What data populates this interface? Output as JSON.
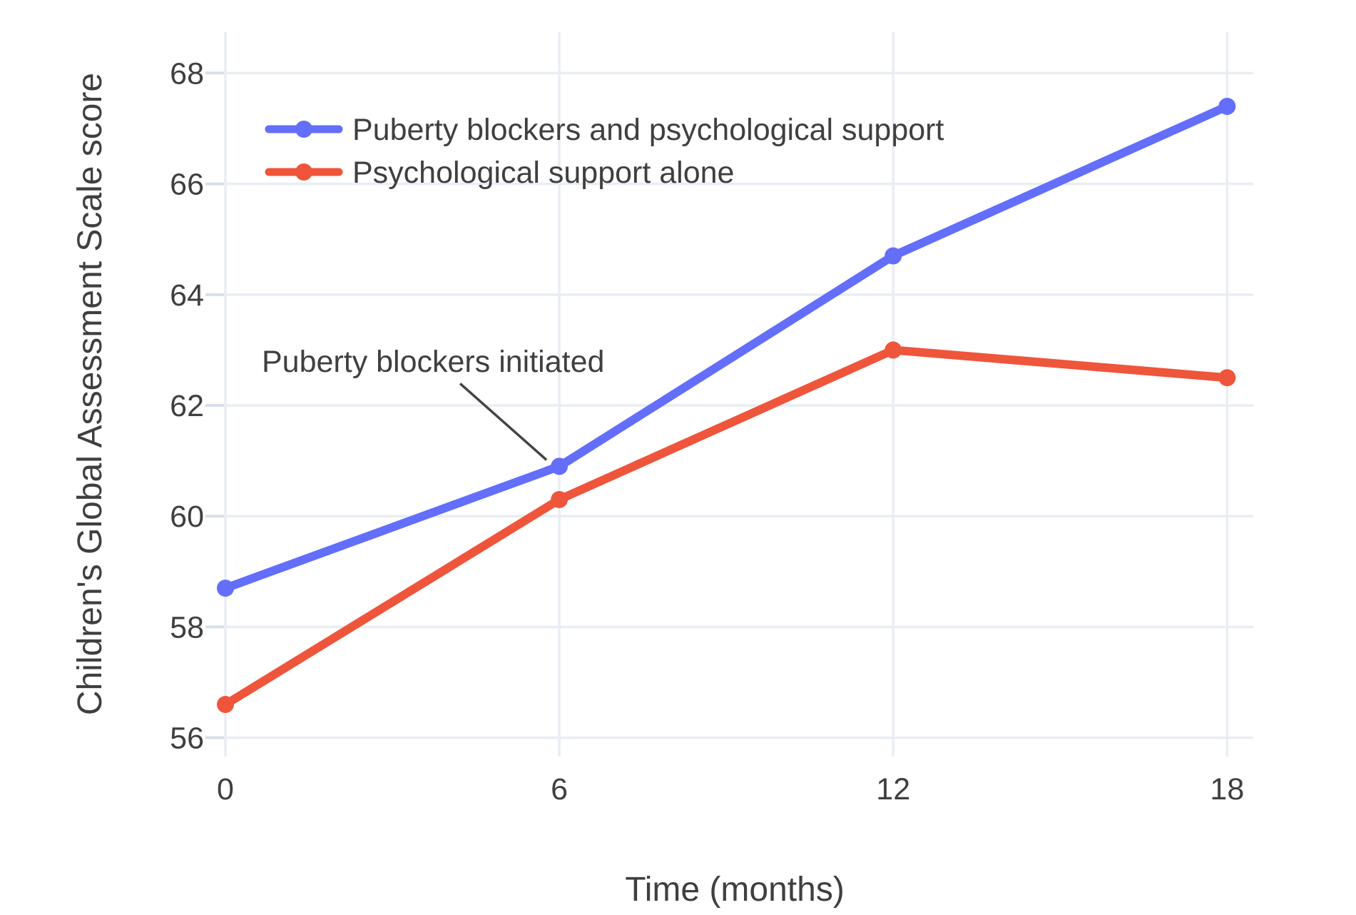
{
  "chart_data": {
    "type": "line",
    "title": "",
    "x": [
      0,
      6,
      12,
      18
    ],
    "x_tick_labels": [
      "0",
      "6",
      "12",
      "18"
    ],
    "y_ticks": [
      56,
      58,
      60,
      62,
      64,
      66,
      68
    ],
    "series": [
      {
        "name": "Puberty blockers and psychological support",
        "color": "#636EFA",
        "values": [
          58.7,
          60.9,
          64.7,
          67.4
        ]
      },
      {
        "name": "Psychological support alone",
        "color": "#EF553B",
        "values": [
          56.6,
          60.3,
          63.0,
          62.5
        ]
      }
    ],
    "xlabel": "Time (months)",
    "ylabel": "Children's Global Assessment Scale score",
    "x_range": [
      0,
      18.47
    ],
    "y_range": [
      55.66,
      68.74
    ],
    "grid": true,
    "legend_position": "top-left-inside",
    "annotation": {
      "text": "Puberty blockers initiated",
      "x": 6,
      "y": 60.9
    }
  },
  "colors": {
    "grid": "#E9EDF4",
    "tick": "#D9DFE9",
    "text": "#3F3F3F",
    "annotation_line": "#444444",
    "background": "#FFFFFF"
  }
}
